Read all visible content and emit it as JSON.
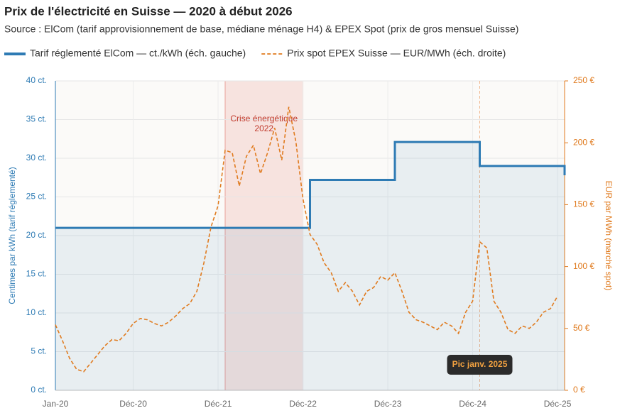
{
  "chart_data": {
    "type": "line",
    "title": "Prix de l'électricité en Suisse — 2020 à début 2026",
    "subtitle": "Source : ElCom (tarif approvisionnement de base, médiane ménage H4) & EPEX Spot (prix de gros mensuel Suisse)",
    "ylabel": "Centimes par kWh (tarif réglementé)",
    "y2label": "EUR par MWh (marché spot)",
    "xlim": [
      0,
      72
    ],
    "xticks": [
      {
        "value": 0,
        "label": "Jan-20"
      },
      {
        "value": 11,
        "label": "Déc-20"
      },
      {
        "value": 23,
        "label": "Déc-21"
      },
      {
        "value": 35,
        "label": "Déc-22"
      },
      {
        "value": 47,
        "label": "Déc-23"
      },
      {
        "value": 59,
        "label": "Déc-24"
      },
      {
        "value": 71,
        "label": "Déc-25"
      }
    ],
    "ylim": [
      0,
      40
    ],
    "yticks": [
      {
        "value": 0,
        "label": "0 ct."
      },
      {
        "value": 5,
        "label": "5 ct."
      },
      {
        "value": 10,
        "label": "10 ct."
      },
      {
        "value": 15,
        "label": "15 ct."
      },
      {
        "value": 20,
        "label": "20 ct."
      },
      {
        "value": 25,
        "label": "25 ct."
      },
      {
        "value": 30,
        "label": "30 ct."
      },
      {
        "value": 35,
        "label": "35 ct."
      },
      {
        "value": 40,
        "label": "40 ct."
      }
    ],
    "y2lim": [
      0,
      250
    ],
    "y2ticks": [
      {
        "value": 0,
        "label": "0 €"
      },
      {
        "value": 50,
        "label": "50 €"
      },
      {
        "value": 100,
        "label": "100 €"
      },
      {
        "value": 150,
        "label": "150 €"
      },
      {
        "value": 200,
        "label": "200 €"
      },
      {
        "value": 250,
        "label": "250 €"
      }
    ],
    "grid": true,
    "series": [
      {
        "name": "Tarif réglementé ElCom — ct./kWh (éch. gauche)",
        "color": "#2e7bb4",
        "x": [
          0,
          36,
          36,
          48,
          48,
          60,
          60,
          72,
          72
        ],
        "values": [
          21,
          21,
          27.2,
          27.2,
          32.1,
          32.1,
          29,
          29,
          27.8
        ]
      },
      {
        "name": "Prix spot EPEX Suisse — EUR/MWh (éch. droite)",
        "color": "#e07b1f",
        "axis": "y2",
        "x": [
          0,
          1,
          2,
          3,
          4,
          5,
          6,
          7,
          8,
          9,
          10,
          11,
          12,
          13,
          14,
          15,
          16,
          17,
          18,
          19,
          20,
          21,
          22,
          23,
          24,
          25,
          26,
          27,
          28,
          29,
          30,
          31,
          32,
          33,
          34,
          35,
          36,
          37,
          38,
          39,
          40,
          41,
          42,
          43,
          44,
          45,
          46,
          47,
          48,
          49,
          50,
          51,
          52,
          53,
          54,
          55,
          56,
          57,
          58,
          59,
          60,
          61,
          62,
          63,
          64,
          65,
          66,
          67,
          68,
          69,
          70,
          71
        ],
        "values": [
          53,
          40,
          26,
          17,
          15,
          22,
          29,
          36,
          41,
          40,
          46,
          54,
          58,
          57,
          54,
          52,
          55,
          60,
          66,
          70,
          80,
          103,
          132,
          149,
          194,
          192,
          165,
          189,
          198,
          175,
          192,
          212,
          186,
          229,
          201,
          155,
          126,
          118,
          103,
          95,
          80,
          87,
          80,
          69,
          80,
          83,
          92,
          89,
          95,
          80,
          63,
          57,
          55,
          52,
          49,
          55,
          52,
          46,
          63,
          72,
          120,
          115,
          72,
          63,
          49,
          46,
          52,
          50,
          55,
          63,
          66,
          76
        ]
      }
    ],
    "annotations": [
      {
        "text": "Crise énergétique 2022",
        "x": [
          24,
          35
        ]
      },
      {
        "text": "Pic janv. 2025",
        "x": 60
      }
    ]
  }
}
